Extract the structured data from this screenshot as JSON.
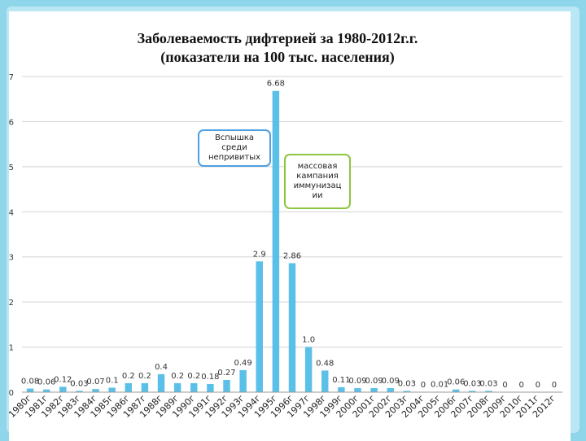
{
  "chart_data": {
    "type": "bar",
    "title_line1": "Заболеваемость дифтерией за 1980-2012г.г.",
    "title_line2": "(показатели на 100 тыс. населения)",
    "ylim": [
      0,
      7
    ],
    "yticks": [
      "0",
      "1",
      "2",
      "3",
      "4",
      "5",
      "6",
      "7"
    ],
    "grid": true,
    "bar_color": "#5bc0e8",
    "categories": [
      "1980г",
      "1981г",
      "1982г",
      "1983г",
      "1984г",
      "1985г",
      "1986г",
      "1987г",
      "1988г",
      "1989г",
      "1990г",
      "1991г",
      "1992г",
      "1993г",
      "1994г",
      "1995г",
      "1996г",
      "1997г",
      "1998г",
      "1999г",
      "2000г",
      "2001г",
      "2002г",
      "2003г",
      "2004г",
      "2005г",
      "2006г",
      "2007г",
      "2008г",
      "2009г",
      "2010г",
      "2011г",
      "2012г"
    ],
    "values": [
      0.08,
      0.06,
      0.12,
      0.03,
      0.07,
      0.1,
      0.2,
      0.2,
      0.4,
      0.2,
      0.2,
      0.18,
      0.27,
      0.49,
      2.9,
      6.68,
      2.86,
      1.0,
      0.48,
      0.11,
      0.09,
      0.09,
      0.09,
      0.03,
      0,
      0.01,
      0.06,
      0.03,
      0.03,
      0,
      0,
      0,
      0
    ],
    "data_labels": [
      "0.08",
      "0.06",
      "0.12",
      "0.03",
      "0.07",
      "0.1",
      "0.2",
      "0.2",
      "0.4",
      "0.2",
      "0.2",
      "0.18",
      "0.27",
      "0.49",
      "2.9",
      "6.68",
      "2.86",
      "1.0",
      "0.48",
      "0.11",
      "0.09",
      "0.09",
      "0.09",
      "0.03",
      "0",
      "0.01",
      "0.06",
      "0.03",
      "0.03",
      "0",
      "0",
      "0",
      "0"
    ],
    "annotations": [
      {
        "text": "Вспышка среди непривитых",
        "lines": [
          "Вспышка",
          "среди",
          "непривитых"
        ]
      },
      {
        "text": "массовая кампания иммунизации",
        "lines": [
          "массовая",
          "кампания",
          "иммунизац",
          "ии"
        ]
      }
    ]
  }
}
